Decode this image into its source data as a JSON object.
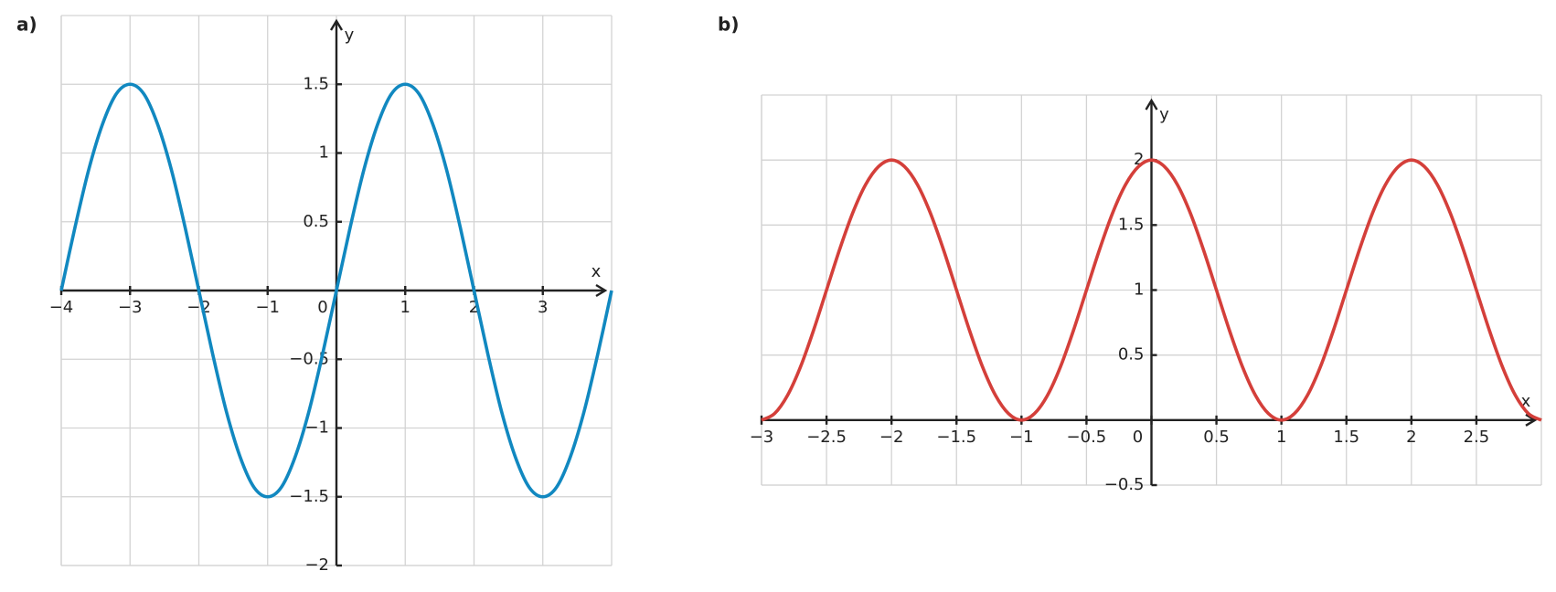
{
  "chart_data": [
    {
      "type": "line",
      "title": "a)",
      "xlabel": "x",
      "ylabel": "y",
      "grid": true,
      "xlim": [
        -4,
        4
      ],
      "ylim": [
        -2,
        2
      ],
      "xticks": [
        {
          "value": -4,
          "label": "−4"
        },
        {
          "value": -3,
          "label": "−3"
        },
        {
          "value": -2,
          "label": "−2"
        },
        {
          "value": -1,
          "label": "−1"
        },
        0,
        1,
        2,
        3
      ],
      "yticks": [
        {
          "value": -2,
          "label": "−2"
        },
        {
          "value": -1.5,
          "label": "−1.5"
        },
        {
          "value": -1,
          "label": "−1"
        },
        {
          "value": -0.5,
          "label": "−0.5"
        },
        0.5,
        1,
        1.5
      ],
      "x": [
        -4,
        -3.8,
        -3.6,
        -3.4,
        -3.2,
        -3,
        -2.8,
        -2.6,
        -2.4,
        -2.2,
        -2,
        -1.8,
        -1.6,
        -1.4,
        -1.2,
        -1,
        -0.8,
        -0.6,
        -0.4,
        -0.2,
        0,
        0.2,
        0.4,
        0.6,
        0.8,
        1,
        1.2,
        1.4,
        1.6,
        1.8,
        2,
        2.2,
        2.4,
        2.6,
        2.8,
        3,
        3.2,
        3.4,
        3.6,
        3.8,
        4
      ],
      "series": [
        {
          "color": "#1188c0",
          "values": [
            0,
            0.46,
            0.88,
            1.21,
            1.43,
            1.5,
            1.43,
            1.21,
            0.88,
            0.46,
            0,
            -0.46,
            -0.88,
            -1.21,
            -1.43,
            -1.5,
            -1.43,
            -1.21,
            -0.88,
            -0.46,
            0,
            0.46,
            0.88,
            1.21,
            1.43,
            1.5,
            1.43,
            1.21,
            0.88,
            0.46,
            0,
            -0.46,
            -0.88,
            -1.21,
            -1.43,
            -1.5,
            -1.43,
            -1.21,
            -0.88,
            -0.46,
            0
          ]
        }
      ]
    },
    {
      "type": "line",
      "title": "b)",
      "xlabel": "x",
      "ylabel": "y",
      "grid": true,
      "xlim": [
        -3,
        3
      ],
      "ylim": [
        -0.5,
        2.5
      ],
      "xticks": [
        {
          "value": -3,
          "label": "−3"
        },
        {
          "value": -2.5,
          "label": "−2.5"
        },
        {
          "value": -2,
          "label": "−2"
        },
        {
          "value": -1.5,
          "label": "−1.5"
        },
        {
          "value": -1,
          "label": "−1"
        },
        {
          "value": -0.5,
          "label": "−0.5"
        },
        0,
        0.5,
        1,
        1.5,
        2,
        2.5
      ],
      "yticks": [
        {
          "value": -0.5,
          "label": "−0.5"
        },
        0.5,
        1,
        1.5,
        2
      ],
      "x": [
        -3,
        -2.9,
        -2.8,
        -2.7,
        -2.6,
        -2.5,
        -2.4,
        -2.3,
        -2.2,
        -2.1,
        -2,
        -1.9,
        -1.8,
        -1.7,
        -1.6,
        -1.5,
        -1.4,
        -1.3,
        -1.2,
        -1.1,
        -1,
        -0.9,
        -0.8,
        -0.7,
        -0.6,
        -0.5,
        -0.4,
        -0.3,
        -0.2,
        -0.1,
        0,
        0.1,
        0.2,
        0.3,
        0.4,
        0.5,
        0.6,
        0.7,
        0.8,
        0.9,
        1,
        1.1,
        1.2,
        1.3,
        1.4,
        1.5,
        1.6,
        1.7,
        1.8,
        1.9,
        2,
        2.1,
        2.2,
        2.3,
        2.4,
        2.5,
        2.6,
        2.7,
        2.8,
        2.9,
        3
      ],
      "series": [
        {
          "color": "#d43f3a",
          "values": [
            0,
            0.05,
            0.19,
            0.41,
            0.69,
            1,
            1.31,
            1.59,
            1.81,
            1.95,
            2,
            1.95,
            1.81,
            1.59,
            1.31,
            1,
            0.69,
            0.41,
            0.19,
            0.05,
            0,
            0.05,
            0.19,
            0.41,
            0.69,
            1,
            1.31,
            1.59,
            1.81,
            1.95,
            2,
            1.95,
            1.81,
            1.59,
            1.31,
            1,
            0.69,
            0.41,
            0.19,
            0.05,
            0,
            0.05,
            0.19,
            0.41,
            0.69,
            1,
            1.31,
            1.59,
            1.81,
            1.95,
            2,
            1.95,
            1.81,
            1.59,
            1.31,
            1,
            0.69,
            0.41,
            0.19,
            0.05,
            0
          ]
        }
      ]
    }
  ]
}
